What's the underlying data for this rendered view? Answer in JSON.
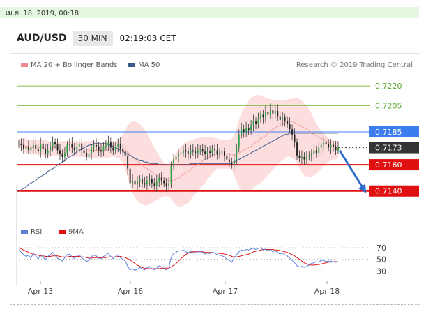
{
  "date_stamp": "เม.ย. 18, 2019, 00:18",
  "header": {
    "pair": "AUD/USD",
    "timeframe": "30 MIN",
    "time": "02:19:03 CET"
  },
  "chart_data": {
    "type": "line",
    "title": "",
    "price_legend": [
      {
        "name": "MA 20 + Bollinger Bands",
        "color": "#f08a8a"
      },
      {
        "name": "MA 50",
        "color": "#3a5a8c"
      }
    ],
    "credit": "Research © 2019 Trading Central",
    "x_ticks": [
      "Apr 13",
      "Apr 16",
      "Apr 17",
      "Apr 18"
    ],
    "y_range": [
      0.7125,
      0.7228
    ],
    "levels": [
      {
        "label": "0.7220",
        "value": 0.722,
        "kind": "target",
        "color": "#7cbf4a"
      },
      {
        "label": "0.7205",
        "value": 0.7205,
        "kind": "target",
        "color": "#7cbf4a"
      },
      {
        "label": "0.7185",
        "value": 0.7185,
        "kind": "resistance",
        "color": "#3b7ded"
      },
      {
        "label": "0.7173",
        "value": 0.7173,
        "kind": "last",
        "color": "#333333"
      },
      {
        "label": "0.7160",
        "value": 0.716,
        "kind": "support",
        "color": "#e01010"
      },
      {
        "label": "0.7140",
        "value": 0.714,
        "kind": "support",
        "color": "#e01010"
      }
    ],
    "forecast": {
      "from": 0.7171,
      "to": 0.714,
      "direction": "down",
      "color": "#2e6cc8"
    },
    "series": [
      {
        "name": "AUD/USD",
        "values": [
          0.7176,
          0.7175,
          0.7172,
          0.7174,
          0.7171,
          0.7173,
          0.7175,
          0.7172,
          0.717,
          0.7176,
          0.7172,
          0.7168,
          0.7171,
          0.7174,
          0.7177,
          0.7176,
          0.7171,
          0.7168,
          0.7166,
          0.7169,
          0.7175,
          0.7176,
          0.7173,
          0.7171,
          0.7174,
          0.7176,
          0.7171,
          0.7169,
          0.7166,
          0.7168,
          0.7173,
          0.7175,
          0.7174,
          0.7171,
          0.717,
          0.7174,
          0.7175,
          0.7177,
          0.7173,
          0.7171,
          0.7174,
          0.7176,
          0.7172,
          0.717,
          0.7167,
          0.7157,
          0.7146,
          0.7148,
          0.7145,
          0.7147,
          0.7149,
          0.7146,
          0.7145,
          0.7148,
          0.7149,
          0.7146,
          0.7144,
          0.7147,
          0.715,
          0.7148,
          0.7146,
          0.7144,
          0.7146,
          0.7159,
          0.7164,
          0.7166,
          0.7168,
          0.7169,
          0.7171,
          0.717,
          0.7168,
          0.7171,
          0.717,
          0.7169,
          0.7171,
          0.7172,
          0.717,
          0.7168,
          0.717,
          0.7169,
          0.7172,
          0.7171,
          0.7168,
          0.7169,
          0.717,
          0.7167,
          0.7164,
          0.7162,
          0.716,
          0.7164,
          0.7173,
          0.7183,
          0.7187,
          0.7185,
          0.7188,
          0.7186,
          0.719,
          0.7193,
          0.7191,
          0.7195,
          0.7198,
          0.7196,
          0.72,
          0.7198,
          0.7202,
          0.7199,
          0.7201,
          0.7197,
          0.7194,
          0.7196,
          0.7193,
          0.7191,
          0.7187,
          0.7183,
          0.7177,
          0.7167,
          0.7165,
          0.7166,
          0.7164,
          0.7166,
          0.7167,
          0.7168,
          0.7171,
          0.7169,
          0.7173,
          0.7175,
          0.7177,
          0.7176,
          0.7173,
          0.7175,
          0.7174,
          0.7171,
          0.7173
        ]
      },
      {
        "name": "MA 20",
        "values": [
          0.7176,
          0.7175,
          0.7175,
          0.7174,
          0.7174,
          0.7173,
          0.7173,
          0.7174,
          0.7173,
          0.7173,
          0.7173,
          0.7172,
          0.7172,
          0.7172,
          0.7173,
          0.7173,
          0.7173,
          0.7172,
          0.7172,
          0.7172,
          0.7172,
          0.7172,
          0.7172,
          0.7172,
          0.7172,
          0.7172,
          0.7172,
          0.7172,
          0.7172,
          0.7171,
          0.7171,
          0.7171,
          0.7171,
          0.7171,
          0.7171,
          0.7171,
          0.7171,
          0.7171,
          0.7172,
          0.7172,
          0.7172,
          0.7172,
          0.7172,
          0.7172,
          0.7171,
          0.717,
          0.7168,
          0.7166,
          0.7164,
          0.7163,
          0.7161,
          0.716,
          0.7158,
          0.7157,
          0.7156,
          0.7155,
          0.7153,
          0.7152,
          0.7151,
          0.715,
          0.7149,
          0.7148,
          0.7148,
          0.7148,
          0.7148,
          0.7149,
          0.715,
          0.7151,
          0.7153,
          0.7154,
          0.7155,
          0.7156,
          0.7158,
          0.7159,
          0.716,
          0.7161,
          0.7163,
          0.7164,
          0.7165,
          0.7166,
          0.7167,
          0.7168,
          0.7168,
          0.7168,
          0.7168,
          0.7168,
          0.7168,
          0.7168,
          0.7168,
          0.7167,
          0.7168,
          0.7169,
          0.717,
          0.7171,
          0.7172,
          0.7173,
          0.7174,
          0.7176,
          0.7177,
          0.7178,
          0.718,
          0.7181,
          0.7182,
          0.7184,
          0.7186,
          0.7187,
          0.7188,
          0.7189,
          0.719,
          0.7191,
          0.7192,
          0.7193,
          0.7193,
          0.7193,
          0.7192,
          0.7191,
          0.719,
          0.7189,
          0.7188,
          0.7187,
          0.7186,
          0.7184,
          0.7183,
          0.7182,
          0.7181,
          0.718,
          0.7179,
          0.7178,
          0.7177,
          0.7176,
          0.7175,
          0.7174,
          0.7173
        ]
      },
      {
        "name": "Upper Band",
        "values": [
          0.718,
          0.718,
          0.718,
          0.718,
          0.7179,
          0.7179,
          0.7179,
          0.7179,
          0.7179,
          0.7179,
          0.7179,
          0.7179,
          0.7178,
          0.7178,
          0.7178,
          0.7178,
          0.7178,
          0.7178,
          0.7178,
          0.7178,
          0.7178,
          0.7178,
          0.7178,
          0.7178,
          0.7178,
          0.7177,
          0.7177,
          0.7178,
          0.7178,
          0.7178,
          0.7178,
          0.7178,
          0.7178,
          0.7178,
          0.7177,
          0.7177,
          0.7177,
          0.7178,
          0.7178,
          0.7178,
          0.7178,
          0.7179,
          0.718,
          0.7183,
          0.7186,
          0.719,
          0.7192,
          0.7193,
          0.7193,
          0.7192,
          0.7191,
          0.7189,
          0.7187,
          0.7184,
          0.718,
          0.7177,
          0.7173,
          0.717,
          0.7167,
          0.7164,
          0.7161,
          0.716,
          0.716,
          0.7162,
          0.7166,
          0.7169,
          0.7172,
          0.7174,
          0.7176,
          0.7177,
          0.7178,
          0.7179,
          0.7179,
          0.718,
          0.718,
          0.7181,
          0.7181,
          0.7181,
          0.7181,
          0.7181,
          0.7181,
          0.718,
          0.718,
          0.7179,
          0.7179,
          0.7179,
          0.7179,
          0.7179,
          0.718,
          0.7182,
          0.7188,
          0.7194,
          0.7199,
          0.7203,
          0.7206,
          0.7209,
          0.7211,
          0.7212,
          0.7213,
          0.7213,
          0.7213,
          0.7212,
          0.7211,
          0.721,
          0.721,
          0.7209,
          0.7209,
          0.7209,
          0.7209,
          0.7209,
          0.7209,
          0.721,
          0.721,
          0.721,
          0.7211,
          0.7211,
          0.721,
          0.7209,
          0.7207,
          0.7205,
          0.7202,
          0.7199,
          0.7195,
          0.7191,
          0.7188,
          0.7186,
          0.7184,
          0.7182,
          0.718,
          0.7179,
          0.7179,
          0.7178,
          0.7178
        ]
      },
      {
        "name": "Lower Band",
        "values": [
          0.7172,
          0.7171,
          0.717,
          0.7169,
          0.7168,
          0.7168,
          0.7168,
          0.7168,
          0.7168,
          0.7167,
          0.7167,
          0.7166,
          0.7166,
          0.7166,
          0.7167,
          0.7167,
          0.7167,
          0.7167,
          0.7166,
          0.7166,
          0.7166,
          0.7166,
          0.7166,
          0.7166,
          0.7166,
          0.7166,
          0.7166,
          0.7166,
          0.7166,
          0.7165,
          0.7165,
          0.7165,
          0.7165,
          0.7165,
          0.7165,
          0.7165,
          0.7165,
          0.7165,
          0.7166,
          0.7166,
          0.7166,
          0.7165,
          0.7164,
          0.7161,
          0.7156,
          0.715,
          0.7144,
          0.7139,
          0.7135,
          0.7133,
          0.7131,
          0.713,
          0.7129,
          0.7129,
          0.713,
          0.7131,
          0.7132,
          0.7133,
          0.7134,
          0.7135,
          0.7136,
          0.7136,
          0.7136,
          0.7134,
          0.7131,
          0.7129,
          0.7128,
          0.7128,
          0.7129,
          0.713,
          0.7131,
          0.7133,
          0.7136,
          0.7138,
          0.714,
          0.7142,
          0.7144,
          0.7146,
          0.7149,
          0.7151,
          0.7153,
          0.7155,
          0.7157,
          0.7157,
          0.7157,
          0.7157,
          0.7157,
          0.7157,
          0.7156,
          0.7152,
          0.7147,
          0.7143,
          0.7141,
          0.714,
          0.714,
          0.714,
          0.7141,
          0.7142,
          0.7144,
          0.7145,
          0.7146,
          0.7148,
          0.715,
          0.7152,
          0.7154,
          0.7156,
          0.7158,
          0.716,
          0.7162,
          0.7163,
          0.7165,
          0.7166,
          0.7166,
          0.7165,
          0.7164,
          0.7161,
          0.7157,
          0.7154,
          0.7152,
          0.7151,
          0.7151,
          0.7151,
          0.7152,
          0.7153,
          0.7155,
          0.7157,
          0.7159,
          0.716,
          0.7162,
          0.7163,
          0.7164,
          0.7164,
          0.7165
        ]
      },
      {
        "name": "MA 50",
        "values": [
          0.714,
          0.7141,
          0.7142,
          0.7143,
          0.7145,
          0.7146,
          0.7147,
          0.7148,
          0.715,
          0.7151,
          0.7152,
          0.7153,
          0.7155,
          0.7156,
          0.7157,
          0.7158,
          0.716,
          0.7161,
          0.7162,
          0.7163,
          0.7165,
          0.7166,
          0.7167,
          0.7168,
          0.717,
          0.7171,
          0.7172,
          0.7173,
          0.7174,
          0.7175,
          0.7175,
          0.7176,
          0.7176,
          0.7176,
          0.7176,
          0.7176,
          0.7176,
          0.7175,
          0.7175,
          0.7174,
          0.7173,
          0.7172,
          0.7171,
          0.717,
          0.7169,
          0.7168,
          0.7167,
          0.7166,
          0.7165,
          0.7164,
          0.7163,
          0.7163,
          0.7162,
          0.7162,
          0.7161,
          0.7161,
          0.7161,
          0.7161,
          0.716,
          0.716,
          0.716,
          0.716,
          0.716,
          0.716,
          0.716,
          0.716,
          0.716,
          0.716,
          0.716,
          0.716,
          0.716,
          0.7161,
          0.7161,
          0.7161,
          0.7161,
          0.7161,
          0.7161,
          0.7161,
          0.7161,
          0.7161,
          0.7161,
          0.7161,
          0.7161,
          0.7161,
          0.7161,
          0.7161,
          0.7161,
          0.7161,
          0.7161,
          0.7162,
          0.7163,
          0.7164,
          0.7165,
          0.7166,
          0.7167,
          0.7168,
          0.7169,
          0.717,
          0.7171,
          0.7172,
          0.7173,
          0.7174,
          0.7175,
          0.7176,
          0.7177,
          0.7178,
          0.7179,
          0.718,
          0.7181,
          0.7182,
          0.7183,
          0.7183,
          0.7184,
          0.7184,
          0.7184,
          0.7184,
          0.7184,
          0.7184,
          0.7184,
          0.7184,
          0.7184,
          0.7184,
          0.7184,
          0.7184,
          0.7184,
          0.7184,
          0.7184,
          0.7184,
          0.7184,
          0.7184,
          0.7184,
          0.7184,
          0.7184
        ]
      }
    ],
    "rsi": {
      "legend": [
        {
          "name": "RSI",
          "color": "#5b7fd9"
        },
        {
          "name": "9MA",
          "color": "#e01010"
        }
      ],
      "ticks": [
        {
          "label": "70",
          "value": 70
        },
        {
          "label": "50",
          "value": 50
        },
        {
          "label": "30",
          "value": 30
        }
      ],
      "y_range": [
        22,
        76
      ],
      "series": [
        {
          "name": "RSI",
          "values": [
            66,
            62,
            58,
            55,
            57,
            52,
            60,
            56,
            51,
            58,
            54,
            49,
            55,
            58,
            62,
            57,
            52,
            50,
            47,
            53,
            58,
            59,
            54,
            51,
            56,
            58,
            52,
            50,
            46,
            49,
            55,
            57,
            56,
            52,
            51,
            55,
            57,
            61,
            55,
            51,
            55,
            58,
            53,
            50,
            47,
            38,
            32,
            34,
            31,
            33,
            36,
            34,
            32,
            35,
            38,
            34,
            32,
            35,
            39,
            37,
            34,
            32,
            35,
            54,
            60,
            62,
            65,
            64,
            66,
            63,
            61,
            64,
            62,
            61,
            63,
            64,
            62,
            59,
            61,
            60,
            62,
            61,
            58,
            57,
            56,
            54,
            50,
            49,
            45,
            52,
            58,
            63,
            66,
            65,
            67,
            66,
            68,
            69,
            67,
            69,
            70,
            66,
            68,
            64,
            67,
            63,
            65,
            62,
            59,
            61,
            58,
            56,
            52,
            48,
            44,
            39,
            37,
            38,
            36,
            38,
            40,
            43,
            44,
            46,
            45,
            48,
            48,
            46,
            47,
            47,
            46,
            45,
            46
          ]
        },
        {
          "name": "9MA",
          "values": [
            70,
            68,
            66,
            64,
            62,
            60,
            59,
            58,
            57,
            56,
            56,
            55,
            55,
            55,
            56,
            56,
            56,
            55,
            54,
            54,
            54,
            55,
            55,
            55,
            55,
            55,
            54,
            54,
            53,
            52,
            52,
            53,
            53,
            53,
            53,
            53,
            53,
            54,
            54,
            54,
            54,
            55,
            55,
            54,
            53,
            51,
            49,
            46,
            43,
            40,
            38,
            36,
            35,
            34,
            34,
            34,
            34,
            34,
            34,
            35,
            35,
            35,
            35,
            37,
            40,
            43,
            47,
            51,
            55,
            58,
            61,
            62,
            63,
            63,
            63,
            63,
            63,
            62,
            62,
            62,
            62,
            61,
            61,
            60,
            60,
            59,
            58,
            57,
            55,
            54,
            54,
            55,
            56,
            57,
            58,
            59,
            61,
            63,
            64,
            65,
            66,
            67,
            67,
            67,
            67,
            67,
            66,
            66,
            65,
            64,
            63,
            62,
            60,
            58,
            56,
            53,
            50,
            47,
            44,
            42,
            41,
            40,
            40,
            41,
            41,
            42,
            43,
            44,
            45,
            45,
            46,
            46,
            46
          ]
        }
      ]
    }
  }
}
